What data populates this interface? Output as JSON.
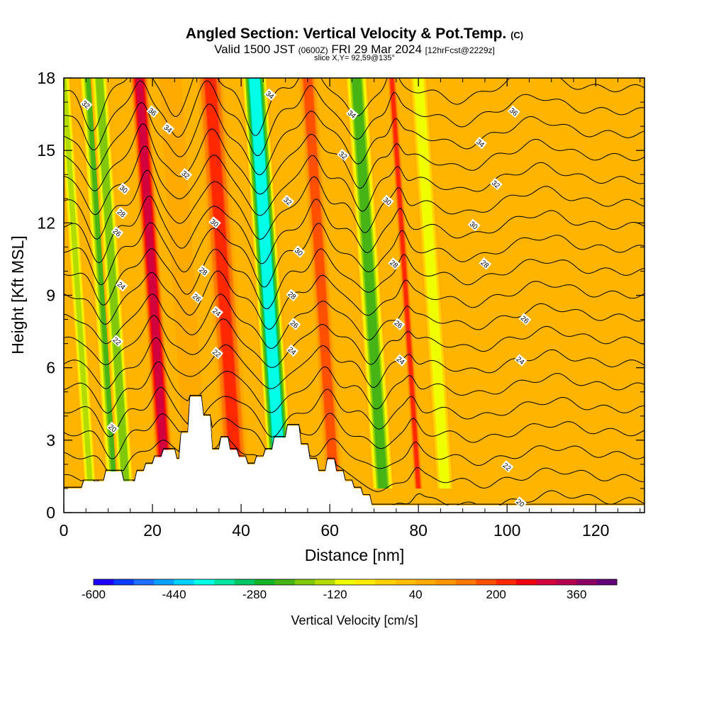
{
  "header": {
    "title": "Angled Section: Vertical Velocity & Pot.Temp.",
    "title_tag": "(C)",
    "valid_prefix": "Valid 1500 JST",
    "valid_utc": "(0600Z)",
    "valid_date": "FRI 29 Mar 2024",
    "forecast": "[12hrFcst@2229z]",
    "slice": "slice X,Y= 92,59@135°"
  },
  "chart_data": {
    "type": "heatmap",
    "xlabel": "Distance [nm]",
    "ylabel": "Height [Kft MSL]",
    "xlim": [
      0,
      131
    ],
    "ylim": [
      0,
      18
    ],
    "x_ticks": [
      0,
      20,
      40,
      60,
      80,
      100,
      120
    ],
    "y_ticks": [
      0,
      3,
      6,
      9,
      12,
      15,
      18
    ],
    "colorbar": {
      "label": "Vertical Velocity [cm/s]",
      "min": -600,
      "max": 400,
      "step": 40,
      "tick_labels": [
        -600,
        -440,
        -280,
        -120,
        40,
        200,
        360
      ],
      "colors": [
        "#1e00ff",
        "#0a3cff",
        "#1e6eff",
        "#0aa0ff",
        "#00d2ff",
        "#00ffe6",
        "#00e6a0",
        "#00c864",
        "#14b428",
        "#46b414",
        "#82c80a",
        "#b4dc00",
        "#f0ff00",
        "#ffeb00",
        "#ffd200",
        "#ffbe00",
        "#ffaa00",
        "#ff9600",
        "#ff7800",
        "#ff5000",
        "#ff2800",
        "#f0000a",
        "#d2003c",
        "#b40050",
        "#8c0064",
        "#640078"
      ]
    },
    "vertical_velocity_bands": [
      {
        "x": 6,
        "width": 1.5,
        "w": -150
      },
      {
        "x": 12,
        "width": 2.5,
        "w": -260
      },
      {
        "x": 14,
        "width": 2.0,
        "w": -200
      },
      {
        "x": 23,
        "width": 2.0,
        "w": 360
      },
      {
        "x": 30,
        "width": 2.5,
        "w": 60
      },
      {
        "x": 39,
        "width": 3.0,
        "w": 230
      },
      {
        "x": 49,
        "width": 3.0,
        "w": -440
      },
      {
        "x": 61,
        "width": 2.0,
        "w": 220
      },
      {
        "x": 72,
        "width": 2.5,
        "w": -280
      },
      {
        "x": 80,
        "width": 1.0,
        "w": 230
      },
      {
        "x": 86,
        "width": 2.0,
        "w": -140
      }
    ],
    "terrain_kft": {
      "x": [
        0,
        4,
        4.5,
        9,
        9.5,
        13,
        13.5,
        16,
        16.5,
        18,
        18.5,
        20,
        20.5,
        22,
        22.5,
        25,
        25.5,
        26,
        26.5,
        28,
        28.5,
        31,
        31.5,
        33,
        33.5,
        35,
        35.5,
        37,
        37.5,
        39,
        39.5,
        41,
        41.5,
        43,
        43.5,
        45,
        45.5,
        47,
        47.5,
        50,
        50.5,
        53,
        53.5,
        55,
        55.5,
        57,
        57.5,
        59,
        59.5,
        61,
        61.5,
        63,
        63.5,
        65,
        65.5,
        67,
        67.5,
        69,
        69.5,
        131
      ],
      "y": [
        1.0,
        1.0,
        1.3,
        1.3,
        1.7,
        1.7,
        1.3,
        1.3,
        1.7,
        1.7,
        2.0,
        2.0,
        2.3,
        2.3,
        2.6,
        2.6,
        2.2,
        2.2,
        3.3,
        3.3,
        4.8,
        4.8,
        4.0,
        4.0,
        2.6,
        2.6,
        3.1,
        3.1,
        2.6,
        2.6,
        2.3,
        2.3,
        2.0,
        2.0,
        2.3,
        2.3,
        2.6,
        2.6,
        3.1,
        3.1,
        3.6,
        3.6,
        2.8,
        2.8,
        2.2,
        2.2,
        1.7,
        1.7,
        2.2,
        2.2,
        1.7,
        1.7,
        1.3,
        1.3,
        1.0,
        1.0,
        0.7,
        0.7,
        0.3,
        0.3
      ]
    },
    "contour_interval_c": 1,
    "contour_labels": [
      {
        "x": 5,
        "y": 16.9,
        "text": "32"
      },
      {
        "x": 20,
        "y": 16.6,
        "text": "36"
      },
      {
        "x": 23.5,
        "y": 15.9,
        "text": "34"
      },
      {
        "x": 27.5,
        "y": 14.0,
        "text": "32"
      },
      {
        "x": 13.5,
        "y": 13.4,
        "text": "30"
      },
      {
        "x": 13,
        "y": 12.4,
        "text": "28"
      },
      {
        "x": 12,
        "y": 11.6,
        "text": "26"
      },
      {
        "x": 13,
        "y": 9.4,
        "text": "24"
      },
      {
        "x": 12,
        "y": 7.1,
        "text": "22"
      },
      {
        "x": 11,
        "y": 3.5,
        "text": "20"
      },
      {
        "x": 34,
        "y": 12.0,
        "text": "30"
      },
      {
        "x": 31.5,
        "y": 10.0,
        "text": "28"
      },
      {
        "x": 30,
        "y": 8.9,
        "text": "26"
      },
      {
        "x": 34.5,
        "y": 8.3,
        "text": "24"
      },
      {
        "x": 34.5,
        "y": 6.6,
        "text": "22"
      },
      {
        "x": 46.5,
        "y": 17.3,
        "text": "34"
      },
      {
        "x": 50.5,
        "y": 12.9,
        "text": "32"
      },
      {
        "x": 53,
        "y": 10.8,
        "text": "30"
      },
      {
        "x": 51.5,
        "y": 9.0,
        "text": "28"
      },
      {
        "x": 52,
        "y": 7.8,
        "text": "26"
      },
      {
        "x": 51.5,
        "y": 6.7,
        "text": "24"
      },
      {
        "x": 65,
        "y": 16.5,
        "text": "34"
      },
      {
        "x": 63,
        "y": 14.8,
        "text": "32"
      },
      {
        "x": 73,
        "y": 12.9,
        "text": "30"
      },
      {
        "x": 74.5,
        "y": 10.3,
        "text": "28"
      },
      {
        "x": 75.5,
        "y": 7.8,
        "text": "26"
      },
      {
        "x": 76,
        "y": 6.3,
        "text": "24"
      },
      {
        "x": 101.5,
        "y": 16.6,
        "text": "36"
      },
      {
        "x": 94,
        "y": 15.3,
        "text": "34"
      },
      {
        "x": 97.5,
        "y": 13.6,
        "text": "32"
      },
      {
        "x": 92.5,
        "y": 11.9,
        "text": "30"
      },
      {
        "x": 95,
        "y": 10.3,
        "text": "28"
      },
      {
        "x": 104,
        "y": 8.0,
        "text": "26"
      },
      {
        "x": 103,
        "y": 6.3,
        "text": "24"
      },
      {
        "x": 100,
        "y": 1.9,
        "text": "22"
      },
      {
        "x": 103,
        "y": 0.4,
        "text": "20"
      }
    ]
  }
}
